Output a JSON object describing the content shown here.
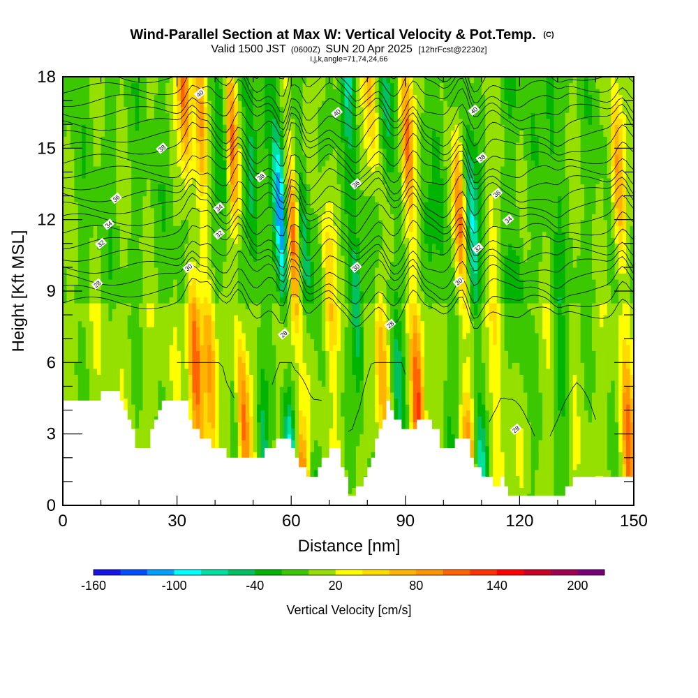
{
  "chart_data": {
    "type": "heatmap",
    "title": "Wind-Parallel Section at Max W: Vertical Velocity & Pot.Temp.",
    "title_mark": "(C)",
    "subtitle": {
      "prefix": "Valid 1500 JST",
      "zulu": "(0600Z)",
      "date": "SUN 20 Apr 2025",
      "forecast": "[12hrFcst@2230z]"
    },
    "params": "i,j,k,angle=71,74,24,66",
    "xlabel": "Distance [nm]",
    "ylabel": "Height [Kft MSL]",
    "xlim": [
      0,
      150
    ],
    "ylim": [
      0,
      18
    ],
    "x_ticks": [
      0,
      30,
      60,
      90,
      120,
      150
    ],
    "y_ticks": [
      0,
      3,
      6,
      9,
      12,
      15,
      18
    ],
    "colorbar": {
      "label": "Vertical Velocity [cm/s]",
      "tick_labels": [
        "-160",
        "-100",
        "-40",
        "20",
        "80",
        "140",
        "200"
      ],
      "tick_values": [
        -160,
        -100,
        -40,
        20,
        80,
        140,
        200
      ],
      "levels": [
        -160,
        -140,
        -120,
        -100,
        -80,
        -60,
        -40,
        -20,
        0,
        20,
        40,
        60,
        80,
        100,
        120,
        140,
        160,
        180,
        200,
        220
      ],
      "colors": [
        "#1414e6",
        "#0050ff",
        "#00a0ff",
        "#00ffff",
        "#00e0a0",
        "#00c060",
        "#00b400",
        "#3cc800",
        "#96e000",
        "#ffff00",
        "#ffdc00",
        "#ffb400",
        "#ff9600",
        "#ff6400",
        "#ff3200",
        "#ff0000",
        "#c80028",
        "#a00050",
        "#780078"
      ]
    },
    "updraft_columns": [
      {
        "x": 34,
        "w": 120
      },
      {
        "x": 38,
        "w": 90
      },
      {
        "x": 46,
        "w": 110
      },
      {
        "x": 61,
        "w": 130
      },
      {
        "x": 70,
        "w": 60
      },
      {
        "x": 83,
        "w": 70
      },
      {
        "x": 92,
        "w": 120
      },
      {
        "x": 105,
        "w": 110
      },
      {
        "x": 113,
        "w": 40
      },
      {
        "x": 147,
        "w": 100
      }
    ],
    "downdraft_columns": [
      {
        "x": 44,
        "w": -40
      },
      {
        "x": 51,
        "w": -60
      },
      {
        "x": 58,
        "w": -130
      },
      {
        "x": 64,
        "w": -50
      },
      {
        "x": 77,
        "w": -70
      },
      {
        "x": 87,
        "w": -50
      },
      {
        "x": 100,
        "w": -40
      },
      {
        "x": 108,
        "w": -90
      },
      {
        "x": 120,
        "w": -30
      },
      {
        "x": 130,
        "w": -40
      }
    ],
    "terrain_height_kft": [
      [
        0,
        4.2
      ],
      [
        6,
        4.2
      ],
      [
        9,
        4.5
      ],
      [
        11,
        4.9
      ],
      [
        14,
        4.9
      ],
      [
        16,
        4.0
      ],
      [
        18,
        3.0
      ],
      [
        19,
        2.4
      ],
      [
        22,
        2.3
      ],
      [
        23,
        3.0
      ],
      [
        25,
        4.0
      ],
      [
        26,
        4.6
      ],
      [
        30,
        4.6
      ],
      [
        32,
        4.2
      ],
      [
        34,
        3.3
      ],
      [
        36,
        2.7
      ],
      [
        38,
        2.6
      ],
      [
        40,
        2.4
      ],
      [
        42,
        2.5
      ],
      [
        43,
        2.1
      ],
      [
        45,
        2.0
      ],
      [
        47,
        2.0
      ],
      [
        49,
        2.0
      ],
      [
        50,
        2.1
      ],
      [
        52,
        2.0
      ],
      [
        54,
        2.4
      ],
      [
        57,
        2.9
      ],
      [
        59,
        2.6
      ],
      [
        61,
        1.8
      ],
      [
        63,
        1.5
      ],
      [
        65,
        1.2
      ],
      [
        66,
        1.3
      ],
      [
        68,
        1.9
      ],
      [
        70,
        2.3
      ],
      [
        72,
        2.2
      ],
      [
        74,
        1.2
      ],
      [
        75,
        0.6
      ],
      [
        76,
        0.4
      ],
      [
        78,
        0.8
      ],
      [
        79,
        1.3
      ],
      [
        81,
        2.1
      ],
      [
        82,
        2.9
      ],
      [
        84,
        3.6
      ],
      [
        85,
        4.3
      ],
      [
        86,
        4.1
      ],
      [
        88,
        3.5
      ],
      [
        90,
        3.0
      ],
      [
        92,
        3.2
      ],
      [
        94,
        3.6
      ],
      [
        96,
        3.4
      ],
      [
        98,
        3.0
      ],
      [
        99,
        2.5
      ],
      [
        100,
        2.3
      ],
      [
        102,
        2.5
      ],
      [
        103,
        2.9
      ],
      [
        106,
        2.8
      ],
      [
        107,
        2.1
      ],
      [
        108,
        1.7
      ],
      [
        110,
        1.3
      ],
      [
        112,
        1.0
      ],
      [
        114,
        0.9
      ],
      [
        115,
        1.0
      ],
      [
        117,
        0.6
      ],
      [
        122,
        0.4
      ],
      [
        130,
        0.4
      ],
      [
        133,
        0.8
      ],
      [
        135,
        1.3
      ],
      [
        138,
        1.3
      ],
      [
        140,
        1.1
      ],
      [
        144,
        1.0
      ],
      [
        150,
        1.0
      ]
    ],
    "isentropes": [
      {
        "label": "28"
      },
      {
        "label": "28"
      },
      {
        "label": "28"
      },
      {
        "label": "30"
      },
      {
        "label": "30"
      },
      {
        "label": "30"
      },
      {
        "label": "32"
      },
      {
        "label": "32"
      },
      {
        "label": "32"
      },
      {
        "label": "34"
      },
      {
        "label": "34"
      },
      {
        "label": "34"
      },
      {
        "label": "36"
      },
      {
        "label": "36"
      },
      {
        "label": "36"
      },
      {
        "label": "38"
      },
      {
        "label": "38"
      },
      {
        "label": "38"
      },
      {
        "label": "40"
      },
      {
        "label": "40"
      },
      {
        "label": "40"
      },
      {
        "label": "28"
      }
    ],
    "isentrope_label_points": [
      [
        9,
        9.3
      ],
      [
        58,
        7.2
      ],
      [
        86,
        7.6
      ],
      [
        33,
        10.0
      ],
      [
        77,
        10.0
      ],
      [
        104,
        9.4
      ],
      [
        10,
        11.0
      ],
      [
        41,
        11.4
      ],
      [
        109,
        10.8
      ],
      [
        12,
        11.8
      ],
      [
        41,
        12.5
      ],
      [
        117,
        12.0
      ],
      [
        14,
        12.9
      ],
      [
        77,
        13.5
      ],
      [
        114,
        13.1
      ],
      [
        26,
        15.0
      ],
      [
        52,
        13.8
      ],
      [
        110,
        14.6
      ],
      [
        36,
        17.3
      ],
      [
        72,
        16.5
      ],
      [
        108,
        16.6
      ],
      [
        119,
        3.2
      ]
    ]
  }
}
